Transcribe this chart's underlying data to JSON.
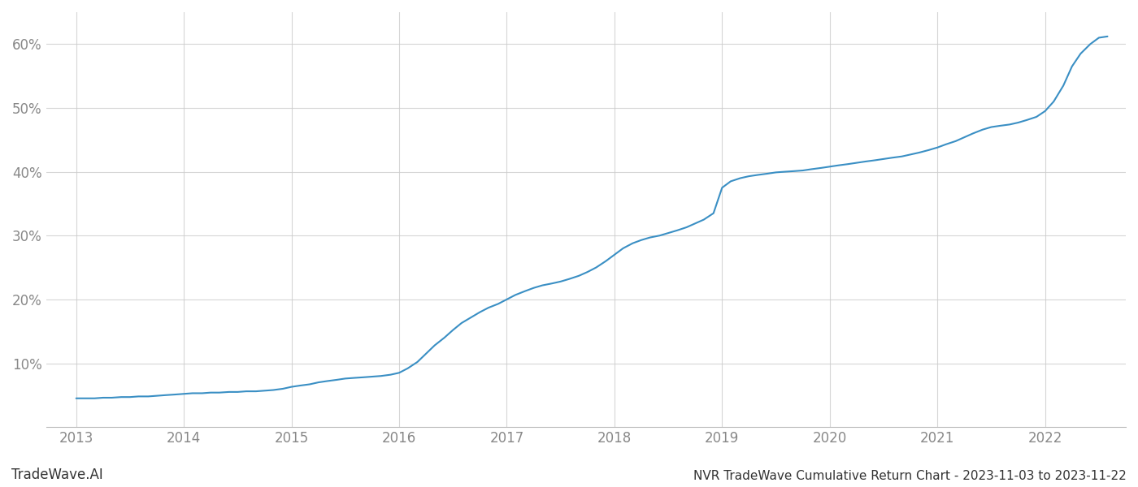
{
  "title": "NVR TradeWave Cumulative Return Chart - 2023-11-03 to 2023-11-22",
  "watermark": "TradeWave.AI",
  "line_color": "#3a8fc4",
  "line_width": 1.5,
  "background_color": "#ffffff",
  "grid_color": "#cccccc",
  "tick_color": "#888888",
  "x_years": [
    2013,
    2014,
    2015,
    2016,
    2017,
    2018,
    2019,
    2020,
    2021,
    2022
  ],
  "x_values": [
    2013.0,
    2013.08,
    2013.17,
    2013.25,
    2013.33,
    2013.42,
    2013.5,
    2013.58,
    2013.67,
    2013.75,
    2013.83,
    2013.92,
    2014.0,
    2014.08,
    2014.17,
    2014.25,
    2014.33,
    2014.42,
    2014.5,
    2014.58,
    2014.67,
    2014.75,
    2014.83,
    2014.92,
    2015.0,
    2015.08,
    2015.17,
    2015.25,
    2015.33,
    2015.42,
    2015.5,
    2015.58,
    2015.67,
    2015.75,
    2015.83,
    2015.92,
    2016.0,
    2016.08,
    2016.17,
    2016.25,
    2016.33,
    2016.42,
    2016.5,
    2016.58,
    2016.67,
    2016.75,
    2016.83,
    2016.92,
    2017.0,
    2017.08,
    2017.17,
    2017.25,
    2017.33,
    2017.42,
    2017.5,
    2017.58,
    2017.67,
    2017.75,
    2017.83,
    2017.92,
    2018.0,
    2018.08,
    2018.17,
    2018.25,
    2018.33,
    2018.42,
    2018.5,
    2018.58,
    2018.67,
    2018.75,
    2018.83,
    2018.92,
    2019.0,
    2019.08,
    2019.17,
    2019.25,
    2019.33,
    2019.42,
    2019.5,
    2019.58,
    2019.67,
    2019.75,
    2019.83,
    2019.92,
    2020.0,
    2020.08,
    2020.17,
    2020.25,
    2020.33,
    2020.42,
    2020.5,
    2020.58,
    2020.67,
    2020.75,
    2020.83,
    2020.92,
    2021.0,
    2021.08,
    2021.17,
    2021.25,
    2021.33,
    2021.42,
    2021.5,
    2021.58,
    2021.67,
    2021.75,
    2021.83,
    2021.92,
    2022.0,
    2022.08,
    2022.17,
    2022.25,
    2022.33,
    2022.42,
    2022.5,
    2022.58
  ],
  "y_values": [
    4.5,
    4.5,
    4.5,
    4.6,
    4.6,
    4.7,
    4.7,
    4.8,
    4.8,
    4.9,
    5.0,
    5.1,
    5.2,
    5.3,
    5.3,
    5.4,
    5.4,
    5.5,
    5.5,
    5.6,
    5.6,
    5.7,
    5.8,
    6.0,
    6.3,
    6.5,
    6.7,
    7.0,
    7.2,
    7.4,
    7.6,
    7.7,
    7.8,
    7.9,
    8.0,
    8.2,
    8.5,
    9.2,
    10.2,
    11.5,
    12.8,
    14.0,
    15.2,
    16.3,
    17.2,
    18.0,
    18.7,
    19.3,
    20.0,
    20.7,
    21.3,
    21.8,
    22.2,
    22.5,
    22.8,
    23.2,
    23.7,
    24.3,
    25.0,
    26.0,
    27.0,
    28.0,
    28.8,
    29.3,
    29.7,
    30.0,
    30.4,
    30.8,
    31.3,
    31.9,
    32.5,
    33.5,
    37.5,
    38.5,
    39.0,
    39.3,
    39.5,
    39.7,
    39.9,
    40.0,
    40.1,
    40.2,
    40.4,
    40.6,
    40.8,
    41.0,
    41.2,
    41.4,
    41.6,
    41.8,
    42.0,
    42.2,
    42.4,
    42.7,
    43.0,
    43.4,
    43.8,
    44.3,
    44.8,
    45.4,
    46.0,
    46.6,
    47.0,
    47.2,
    47.4,
    47.7,
    48.1,
    48.6,
    49.5,
    51.0,
    53.5,
    56.5,
    58.5,
    60.0,
    61.0,
    61.2
  ],
  "ylim": [
    0,
    65
  ],
  "xlim": [
    2012.72,
    2022.75
  ],
  "yticks": [
    10,
    20,
    30,
    40,
    50,
    60
  ],
  "title_fontsize": 11,
  "watermark_fontsize": 12,
  "tick_fontsize": 12
}
